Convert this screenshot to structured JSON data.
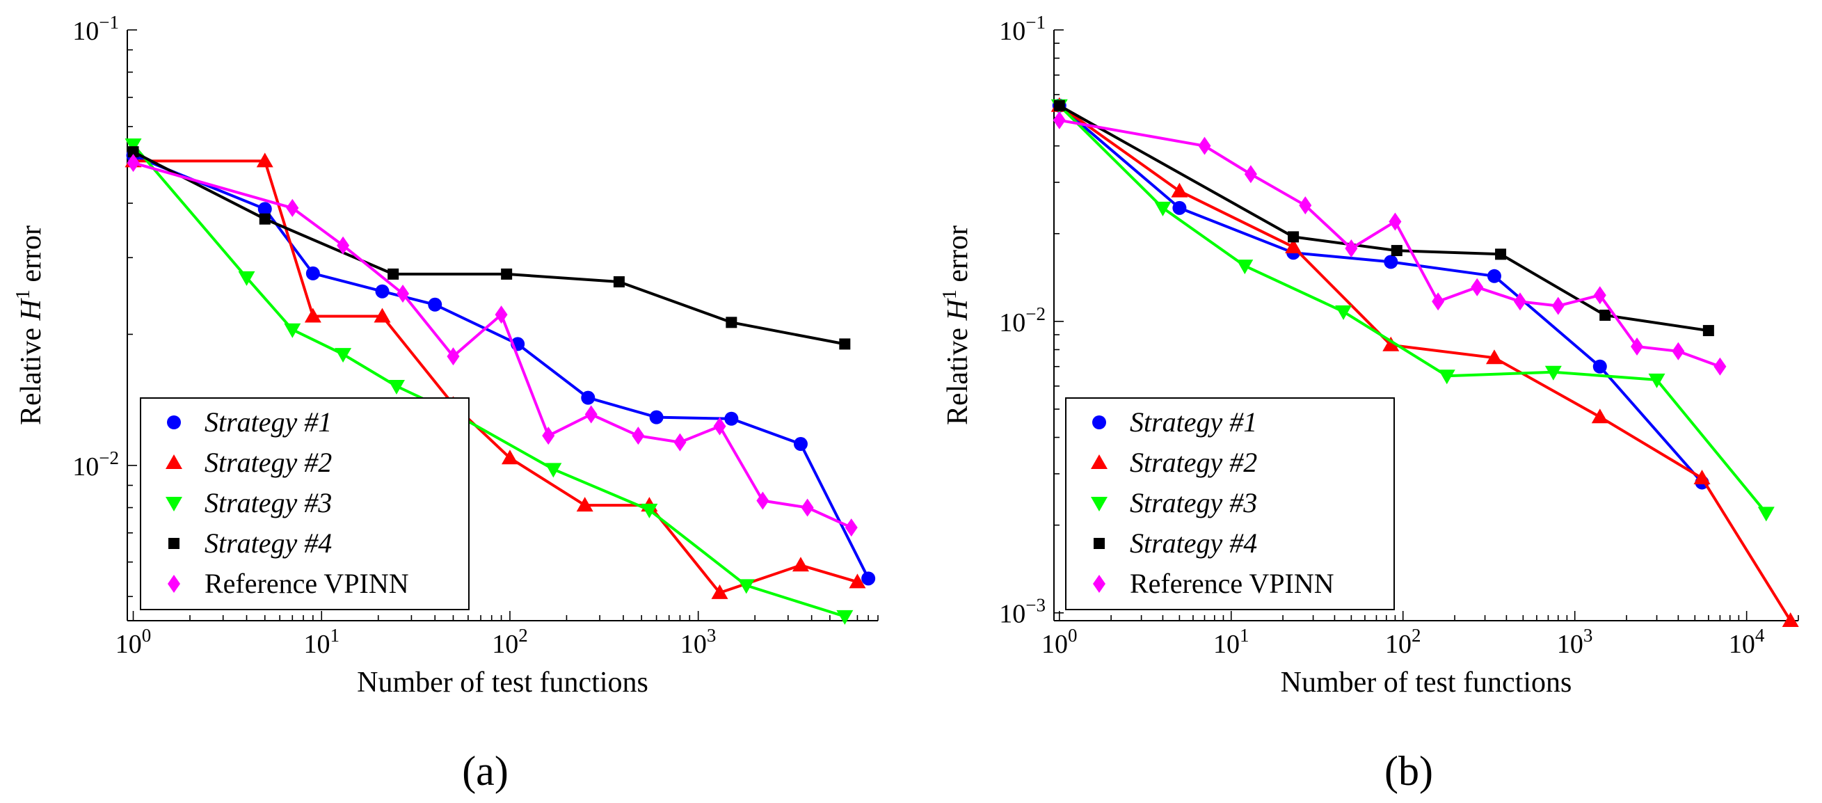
{
  "chart_data": [
    {
      "type": "line",
      "panel_label": "(a)",
      "xlabel": "Number of test functions",
      "ylabel": "Relative H",
      "ylabel_sup": "1",
      "ylabel_suffix": " error",
      "xscale": "log",
      "yscale": "log",
      "xlim": [
        0.93,
        9000
      ],
      "ylim": [
        0.0044,
        0.1
      ],
      "xticks": [
        {
          "value": 1,
          "base": "10",
          "exp": "0"
        },
        {
          "value": 10,
          "base": "10",
          "exp": "1"
        },
        {
          "value": 100,
          "base": "10",
          "exp": "2"
        },
        {
          "value": 1000,
          "base": "10",
          "exp": "3"
        }
      ],
      "yticks": [
        {
          "value": 0.01,
          "base": "10",
          "exp": "−2"
        },
        {
          "value": 0.1,
          "base": "10",
          "exp": "−1"
        }
      ],
      "grid": false,
      "legend_position": "bottom-left",
      "series": [
        {
          "name": "Strategy #1",
          "italic": true,
          "color": "#0000ff",
          "marker": "circle",
          "x": [
            1,
            5,
            9,
            21,
            40,
            110,
            260,
            600,
            1500,
            3500,
            8000
          ],
          "y": [
            0.0515,
            0.0388,
            0.0276,
            0.0251,
            0.0234,
            0.019,
            0.0143,
            0.0129,
            0.0128,
            0.0112,
            0.0055
          ]
        },
        {
          "name": "Strategy #2",
          "italic": true,
          "color": "#ff0000",
          "marker": "triangle-up",
          "x": [
            1,
            5,
            9,
            21,
            50,
            100,
            250,
            550,
            1300,
            3500,
            7000
          ],
          "y": [
            0.05,
            0.05,
            0.022,
            0.022,
            0.0138,
            0.0104,
            0.0081,
            0.0081,
            0.0051,
            0.0059,
            0.0054
          ]
        },
        {
          "name": "Strategy #3",
          "italic": true,
          "color": "#00ff00",
          "marker": "triangle-down",
          "x": [
            1,
            4,
            7,
            13,
            25,
            50,
            170,
            550,
            1800,
            6000
          ],
          "y": [
            0.0545,
            0.027,
            0.0205,
            0.018,
            0.0152,
            0.0132,
            0.0098,
            0.0079,
            0.0053,
            0.0045
          ]
        },
        {
          "name": "Strategy #4",
          "italic": true,
          "color": "#000000",
          "marker": "square",
          "x": [
            1,
            5,
            24,
            96,
            380,
            1500,
            6000
          ],
          "y": [
            0.0525,
            0.0368,
            0.0275,
            0.0275,
            0.0264,
            0.0213,
            0.019
          ]
        },
        {
          "name": "Reference VPINN",
          "italic": false,
          "color": "#ff00ff",
          "marker": "diamond",
          "x": [
            1,
            7,
            13,
            27,
            50,
            90,
            160,
            270,
            480,
            800,
            1300,
            2200,
            3800,
            6500
          ],
          "y": [
            0.0495,
            0.039,
            0.032,
            0.0248,
            0.0178,
            0.0222,
            0.0117,
            0.0131,
            0.0117,
            0.0113,
            0.0123,
            0.0083,
            0.008,
            0.0072
          ]
        }
      ]
    },
    {
      "type": "line",
      "panel_label": "(b)",
      "xlabel": "Number of test functions",
      "ylabel": "Relative H",
      "ylabel_sup": "1",
      "ylabel_suffix": " error",
      "xscale": "log",
      "yscale": "log",
      "xlim": [
        0.93,
        20000
      ],
      "ylim": [
        0.00094,
        0.1
      ],
      "xticks": [
        {
          "value": 1,
          "base": "10",
          "exp": "0"
        },
        {
          "value": 10,
          "base": "10",
          "exp": "1"
        },
        {
          "value": 100,
          "base": "10",
          "exp": "2"
        },
        {
          "value": 1000,
          "base": "10",
          "exp": "3"
        },
        {
          "value": 10000,
          "base": "10",
          "exp": "4"
        }
      ],
      "yticks": [
        {
          "value": 0.001,
          "base": "10",
          "exp": "−3"
        },
        {
          "value": 0.01,
          "base": "10",
          "exp": "−2"
        },
        {
          "value": 0.1,
          "base": "10",
          "exp": "−1"
        }
      ],
      "grid": false,
      "legend_position": "bottom-left",
      "series": [
        {
          "name": "Strategy #1",
          "italic": true,
          "color": "#0000ff",
          "marker": "circle",
          "x": [
            1,
            5,
            23,
            85,
            340,
            1400,
            5500
          ],
          "y": [
            0.055,
            0.0245,
            0.0172,
            0.016,
            0.0143,
            0.007,
            0.0028
          ]
        },
        {
          "name": "Strategy #2",
          "italic": true,
          "color": "#ff0000",
          "marker": "triangle-up",
          "x": [
            1,
            5,
            23,
            85,
            340,
            1400,
            5500,
            18000
          ],
          "y": [
            0.055,
            0.028,
            0.018,
            0.0083,
            0.0075,
            0.0047,
            0.0029,
            0.00094
          ]
        },
        {
          "name": "Strategy #3",
          "italic": true,
          "color": "#00ff00",
          "marker": "triangle-down",
          "x": [
            1,
            4,
            12,
            45,
            180,
            750,
            3000,
            13000
          ],
          "y": [
            0.055,
            0.0245,
            0.0155,
            0.0108,
            0.0065,
            0.0067,
            0.0063,
            0.0022
          ]
        },
        {
          "name": "Strategy #4",
          "italic": true,
          "color": "#000000",
          "marker": "square",
          "x": [
            1,
            23,
            92,
            370,
            1500,
            6000
          ],
          "y": [
            0.055,
            0.0195,
            0.0175,
            0.017,
            0.0105,
            0.0093
          ]
        },
        {
          "name": "Reference VPINN",
          "italic": false,
          "color": "#ff00ff",
          "marker": "diamond",
          "x": [
            1,
            7,
            13,
            27,
            50,
            90,
            160,
            270,
            480,
            800,
            1400,
            2300,
            4000,
            7000
          ],
          "y": [
            0.049,
            0.04,
            0.032,
            0.025,
            0.0178,
            0.022,
            0.0117,
            0.0131,
            0.0117,
            0.0113,
            0.0123,
            0.0082,
            0.0079,
            0.007
          ]
        }
      ]
    }
  ]
}
